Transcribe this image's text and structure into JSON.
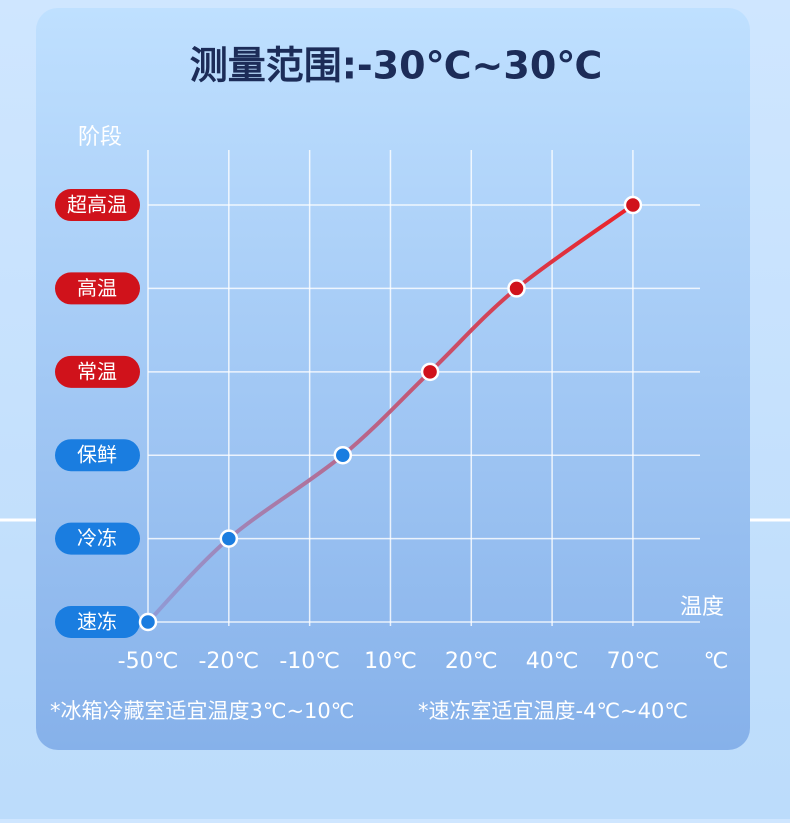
{
  "chart_data": {
    "type": "line",
    "title": "测量范围:-30℃~30℃",
    "y_label": "阶段",
    "x_label": "温度",
    "x_unit": "℃",
    "notes": [
      "*冰箱冷藏室适宜温度3℃~10℃",
      "*速冻室适宜温度-4℃~40℃"
    ],
    "xlim": [
      0,
      6.83
    ],
    "xticks": [
      {
        "value": 0,
        "label": "-50℃"
      },
      {
        "value": 1,
        "label": "-20℃"
      },
      {
        "value": 2,
        "label": "-10℃"
      },
      {
        "value": 3,
        "label": "10℃"
      },
      {
        "value": 4,
        "label": "20℃"
      },
      {
        "value": 5,
        "label": "40℃"
      },
      {
        "value": 6,
        "label": "70℃"
      }
    ],
    "ylim": [
      0,
      5.66
    ],
    "yticks": [
      {
        "value": 0,
        "label": "速冻"
      },
      {
        "value": 1,
        "label": "冷冻"
      },
      {
        "value": 2,
        "label": "保鲜"
      },
      {
        "value": 3,
        "label": "常温"
      },
      {
        "value": 4,
        "label": "高温"
      },
      {
        "value": 5,
        "label": "超高温"
      }
    ],
    "stage_colors": [
      "#1a7de0",
      "#1a7de0",
      "#1a7de0",
      "#d0121b",
      "#d0121b",
      "#d0121b"
    ],
    "line_colors": [
      "#8f9cd8",
      "#ec2127"
    ],
    "grid": true,
    "series": [
      {
        "x": [
          0,
          1,
          2.41,
          3.49,
          4.56,
          6
        ],
        "values": [
          0,
          1,
          2,
          3,
          4,
          5
        ]
      }
    ]
  }
}
